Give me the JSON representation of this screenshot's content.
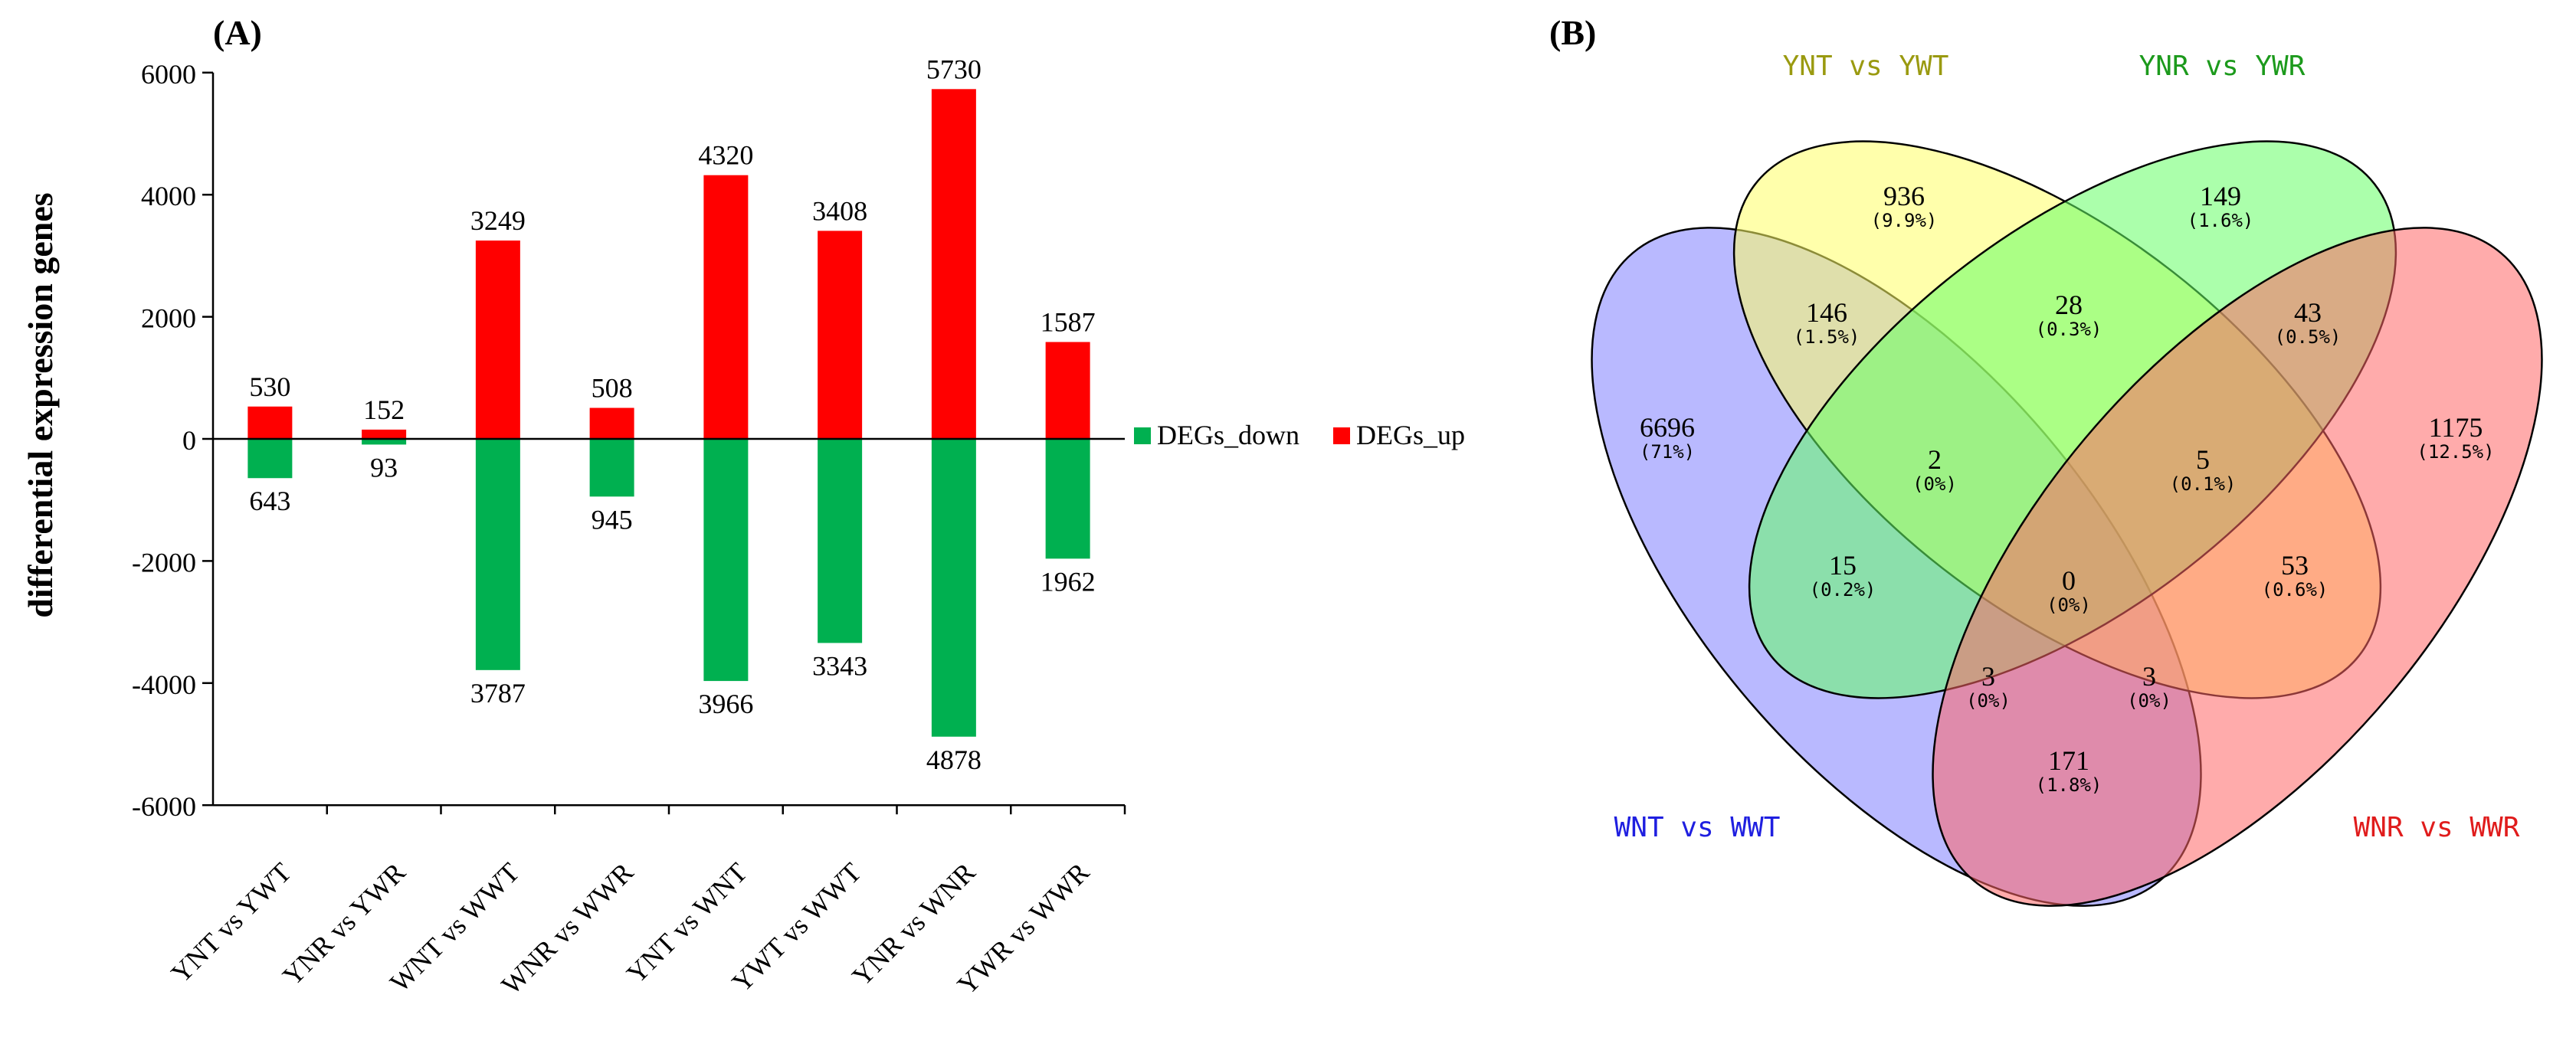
{
  "panel_a": {
    "label": "(A)",
    "chart_data": {
      "type": "bar",
      "ylabel": "differential expression genes",
      "xlabel": "",
      "ylim": [
        -6000,
        6000
      ],
      "yticks": [
        6000,
        4000,
        2000,
        0,
        -2000,
        -4000,
        -6000
      ],
      "ytick_labels": [
        "6000",
        "4000",
        "2000",
        "0",
        "-2000",
        "-4000",
        "-6000"
      ],
      "categories": [
        "YNT vs YWT",
        "YNR vs YWR",
        "WNT vs WWT",
        "WNR vs WWR",
        "YNT vs WNT",
        "YWT vs WWT",
        "YNR vs WNR",
        "YWR vs WWR"
      ],
      "legend_position": "right",
      "series": [
        {
          "name": "DEGs_down",
          "color": "#00b050",
          "values": [
            -643,
            -93,
            -3787,
            -945,
            -3966,
            -3343,
            -4878,
            -1962
          ],
          "labels": [
            "643",
            "93",
            "3787",
            "945",
            "3966",
            "3343",
            "4878",
            "1962"
          ]
        },
        {
          "name": "DEGs_up",
          "color": "#ff0000",
          "values": [
            530,
            152,
            3249,
            508,
            4320,
            3408,
            5730,
            1587
          ],
          "labels": [
            "530",
            "152",
            "3249",
            "508",
            "4320",
            "3408",
            "5730",
            "1587"
          ]
        }
      ]
    }
  },
  "panel_b": {
    "label": "(B)",
    "chart_data": {
      "type": "venn",
      "sets": [
        {
          "name": "WNT vs WWT",
          "fill": "#8080ff",
          "label_color": "#1f1fe0"
        },
        {
          "name": "YNT vs YWT",
          "fill": "#ffff66",
          "label_color": "#9a9a10"
        },
        {
          "name": "YNR vs YWR",
          "fill": "#66ff66",
          "label_color": "#1c9a1c"
        },
        {
          "name": "WNR vs WWR",
          "fill": "#ff6666",
          "label_color": "#e01c1c"
        }
      ],
      "regions": [
        {
          "sets": [
            "WNT vs WWT"
          ],
          "count": "6696",
          "percent": "(71%)"
        },
        {
          "sets": [
            "YNT vs YWT"
          ],
          "count": "936",
          "percent": "(9.9%)"
        },
        {
          "sets": [
            "YNR vs YWR"
          ],
          "count": "149",
          "percent": "(1.6%)"
        },
        {
          "sets": [
            "WNR vs WWR"
          ],
          "count": "1175",
          "percent": "(12.5%)"
        },
        {
          "sets": [
            "WNT vs WWT",
            "YNT vs YWT"
          ],
          "count": "146",
          "percent": "(1.5%)"
        },
        {
          "sets": [
            "YNT vs YWT",
            "YNR vs YWR"
          ],
          "count": "28",
          "percent": "(0.3%)"
        },
        {
          "sets": [
            "YNR vs YWR",
            "WNR vs WWR"
          ],
          "count": "43",
          "percent": "(0.5%)"
        },
        {
          "sets": [
            "WNT vs WWT",
            "YNT vs YWT",
            "YNR vs YWR"
          ],
          "count": "2",
          "percent": "(0%)"
        },
        {
          "sets": [
            "YNT vs YWT",
            "YNR vs YWR",
            "WNR vs WWR"
          ],
          "count": "5",
          "percent": "(0.1%)"
        },
        {
          "sets": [
            "WNT vs WWT",
            "YNR vs YWR"
          ],
          "count": "15",
          "percent": "(0.2%)"
        },
        {
          "sets": [
            "WNT vs WWT",
            "YNT vs YWT",
            "YNR vs YWR",
            "WNR vs WWR"
          ],
          "count": "0",
          "percent": "(0%)"
        },
        {
          "sets": [
            "YNT vs YWT",
            "WNR vs WWR"
          ],
          "count": "53",
          "percent": "(0.6%)"
        },
        {
          "sets": [
            "WNT vs WWT",
            "YNR vs YWR",
            "WNR vs WWR"
          ],
          "count": "3",
          "percent": "(0%)"
        },
        {
          "sets": [
            "WNT vs WWT",
            "YNT vs YWT",
            "WNR vs WWR"
          ],
          "count": "3",
          "percent": "(0%)"
        },
        {
          "sets": [
            "WNT vs WWT",
            "WNR vs WWR"
          ],
          "count": "171",
          "percent": "(1.8%)"
        }
      ]
    }
  }
}
